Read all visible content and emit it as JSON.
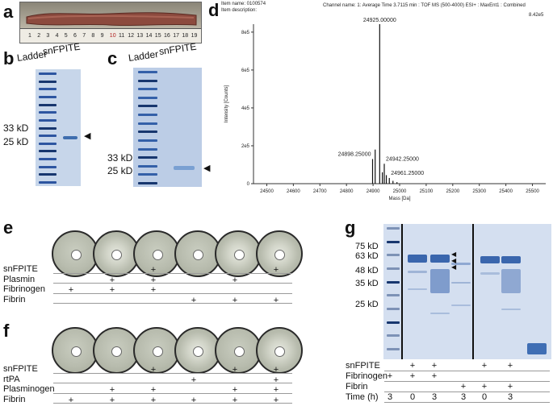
{
  "panels": {
    "a": "a",
    "b": "b",
    "c": "c",
    "d": "d",
    "e": "e",
    "f": "f",
    "g": "g"
  },
  "ruler_numbers": [
    "1",
    "2",
    "3",
    "4",
    "5",
    "6",
    "7",
    "8",
    "9",
    "10",
    "11",
    "12",
    "13",
    "14",
    "15",
    "16",
    "17",
    "18",
    "19"
  ],
  "gel_b": {
    "ladder": "Ladder",
    "sample": "snFPITE",
    "markers": [
      "33 kD",
      "25 kD"
    ]
  },
  "gel_c": {
    "ladder": "Ladder",
    "sample": "snFPITE",
    "markers": [
      "33 kD",
      "25 kD"
    ]
  },
  "spectrum": {
    "header_left_1": "Item name: 0100574",
    "header_left_2": "Item description:",
    "header_center": "Channel name: 1: Average Time 3.7115 min : TOF MS (500-4000) ESI+ : MaxEnt1 : Combined",
    "header_right": "8.42e5",
    "peak_labels": [
      "24925.00000",
      "24898.25000",
      "24942.25000",
      "24961.25000"
    ]
  },
  "chart_data": {
    "type": "line",
    "title": "",
    "xlabel": "Mass [Da]",
    "ylabel": "Intensity [Counts]",
    "xlim": [
      24450,
      25550
    ],
    "ylim": [
      0,
      842000
    ],
    "x_ticks": [
      24500,
      24600,
      24700,
      24800,
      24900,
      25000,
      25100,
      25200,
      25300,
      25400,
      25500
    ],
    "y_ticks": [
      {
        "value": 0,
        "label": "0"
      },
      {
        "value": 200000,
        "label": "2e5"
      },
      {
        "value": 400000,
        "label": "4e5"
      },
      {
        "value": 600000,
        "label": "6e5"
      },
      {
        "value": 800000,
        "label": "8e5"
      }
    ],
    "peaks": [
      {
        "x": 24898.25,
        "y": 130000,
        "label": "24898.25000"
      },
      {
        "x": 24908,
        "y": 180000,
        "label": ""
      },
      {
        "x": 24925.0,
        "y": 842000,
        "label": "24925.00000"
      },
      {
        "x": 24935,
        "y": 60000,
        "label": ""
      },
      {
        "x": 24942.25,
        "y": 105000,
        "label": "24942.25000"
      },
      {
        "x": 24950,
        "y": 45000,
        "label": ""
      },
      {
        "x": 24961.25,
        "y": 30000,
        "label": "24961.25000"
      },
      {
        "x": 24975,
        "y": 15000,
        "label": ""
      },
      {
        "x": 24990,
        "y": 8000,
        "label": ""
      }
    ]
  },
  "panel_e": {
    "rows": [
      {
        "label": "snFPITE",
        "plus": [
          false,
          false,
          true,
          false,
          false,
          true
        ]
      },
      {
        "label": "Plasmin",
        "plus": [
          false,
          true,
          true,
          false,
          true,
          false
        ]
      },
      {
        "label": "Fibrinogen",
        "plus": [
          true,
          true,
          true,
          false,
          false,
          false
        ]
      },
      {
        "label": "Fibrin",
        "plus": [
          false,
          false,
          false,
          true,
          true,
          true
        ]
      }
    ],
    "lysis": [
      false,
      true,
      false,
      false,
      true,
      true
    ]
  },
  "panel_f": {
    "rows": [
      {
        "label": "snFPITE",
        "plus": [
          false,
          false,
          true,
          false,
          true,
          true
        ]
      },
      {
        "label": "rtPA",
        "plus": [
          false,
          false,
          false,
          true,
          false,
          true
        ]
      },
      {
        "label": "Plasminogen",
        "plus": [
          false,
          true,
          true,
          false,
          true,
          true
        ]
      },
      {
        "label": "Fibrin",
        "plus": [
          true,
          true,
          true,
          true,
          true,
          true
        ]
      }
    ],
    "lysis": [
      false,
      false,
      false,
      true,
      false,
      true
    ]
  },
  "panel_g": {
    "markers": [
      "75 kD",
      "63 kD",
      "48 kD",
      "35 kD",
      "25 kD"
    ],
    "rows": [
      {
        "label": "snFPITE",
        "values": [
          "",
          "+",
          "+",
          "",
          "+",
          "+"
        ]
      },
      {
        "label": "Fibrinogen",
        "values": [
          "+",
          "+",
          "+",
          "",
          "",
          ""
        ]
      },
      {
        "label": "Fibrin",
        "values": [
          "",
          "",
          "",
          "+",
          "+",
          "+"
        ]
      },
      {
        "label": "Time (h)",
        "values": [
          "3",
          "0",
          "3",
          "3",
          "0",
          "3"
        ]
      }
    ]
  }
}
